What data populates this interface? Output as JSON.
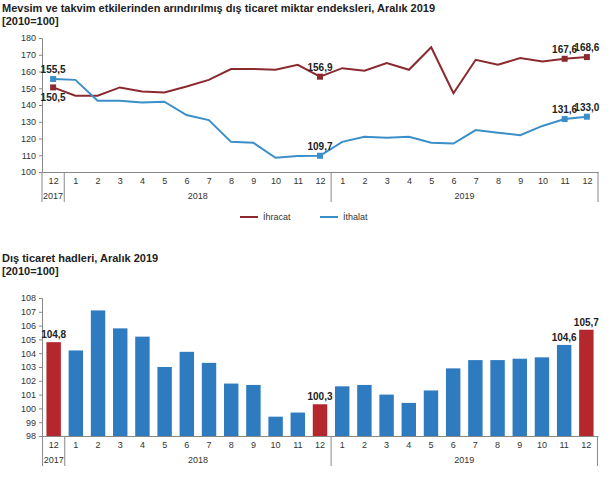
{
  "chart_data": [
    {
      "type": "line",
      "title": "Mevsim ve takvim etkilerinden arındırılmış dış ticaret miktar endeksleri, Aralık 2019",
      "subtitle": "[2010=100]",
      "categories": [
        "12",
        "1",
        "2",
        "3",
        "4",
        "5",
        "6",
        "7",
        "8",
        "9",
        "10",
        "11",
        "12",
        "1",
        "2",
        "3",
        "4",
        "5",
        "6",
        "7",
        "8",
        "9",
        "10",
        "11",
        "12"
      ],
      "x_group_labels": [
        "2017",
        "2018",
        "2019"
      ],
      "x_group_sizes": [
        1,
        12,
        12
      ],
      "ylim": [
        100,
        180
      ],
      "yticks": [
        100,
        110,
        120,
        130,
        140,
        150,
        160,
        170,
        180
      ],
      "grid": false,
      "legend": "bottom",
      "data_labels": true,
      "series": [
        {
          "name": "İhracat",
          "color": "#8b2a2e",
          "marker": "square",
          "values": [
            150.5,
            145.5,
            145.5,
            150.5,
            148,
            147.5,
            151,
            155,
            161.5,
            161.5,
            161,
            164,
            156.9,
            162,
            160.5,
            165,
            161,
            174.5,
            147,
            167,
            164,
            168,
            166,
            167.6,
            168.6
          ],
          "value_labels": [
            "150,5",
            null,
            null,
            null,
            null,
            null,
            null,
            null,
            null,
            null,
            null,
            null,
            "156,9",
            null,
            null,
            null,
            null,
            null,
            null,
            null,
            null,
            null,
            null,
            "167,6",
            "168,6"
          ]
        },
        {
          "name": "İthalat",
          "color": "#3b8fc9",
          "marker": "square",
          "values": [
            155.5,
            155,
            142.5,
            142.5,
            141.5,
            142,
            134,
            131,
            118,
            117.5,
            108.5,
            109.5,
            109.7,
            118,
            121,
            120.5,
            121,
            117.5,
            117,
            125,
            123.5,
            122,
            127.5,
            131.6,
            133.0
          ],
          "value_labels": [
            "155,5",
            null,
            null,
            null,
            null,
            null,
            null,
            null,
            null,
            null,
            null,
            null,
            "109,7",
            null,
            null,
            null,
            null,
            null,
            null,
            null,
            null,
            null,
            null,
            "131,6",
            "133,0"
          ]
        }
      ]
    },
    {
      "type": "bar",
      "title": "Dış ticaret hadleri, Aralık 2019",
      "subtitle": "[2010=100]",
      "categories": [
        "12",
        "1",
        "2",
        "3",
        "4",
        "5",
        "6",
        "7",
        "8",
        "9",
        "10",
        "11",
        "12",
        "1",
        "2",
        "3",
        "4",
        "5",
        "6",
        "7",
        "8",
        "9",
        "10",
        "11",
        "12"
      ],
      "x_group_labels": [
        "2017",
        "2018",
        "2019"
      ],
      "x_group_sizes": [
        1,
        12,
        12
      ],
      "ylim": [
        98,
        108
      ],
      "yticks": [
        98,
        99,
        100,
        101,
        102,
        103,
        104,
        105,
        106,
        107,
        108
      ],
      "grid": false,
      "data_labels": true,
      "values": [
        104.8,
        104.2,
        107.1,
        105.8,
        105.2,
        103.0,
        104.1,
        103.3,
        101.8,
        101.7,
        99.4,
        99.7,
        100.3,
        101.6,
        101.7,
        101.0,
        100.4,
        101.3,
        102.9,
        103.5,
        103.5,
        103.6,
        103.7,
        104.6,
        105.7
      ],
      "value_labels": [
        "104,8",
        null,
        null,
        null,
        null,
        null,
        null,
        null,
        null,
        null,
        null,
        null,
        "100,3",
        null,
        null,
        null,
        null,
        null,
        null,
        null,
        null,
        null,
        null,
        "104,6",
        "105,7"
      ],
      "colors": [
        "#b4282d",
        "#2e7bbf",
        "#2e7bbf",
        "#2e7bbf",
        "#2e7bbf",
        "#2e7bbf",
        "#2e7bbf",
        "#2e7bbf",
        "#2e7bbf",
        "#2e7bbf",
        "#2e7bbf",
        "#2e7bbf",
        "#b4282d",
        "#2e7bbf",
        "#2e7bbf",
        "#2e7bbf",
        "#2e7bbf",
        "#2e7bbf",
        "#2e7bbf",
        "#2e7bbf",
        "#2e7bbf",
        "#2e7bbf",
        "#2e7bbf",
        "#2e7bbf",
        "#b4282d"
      ]
    }
  ]
}
